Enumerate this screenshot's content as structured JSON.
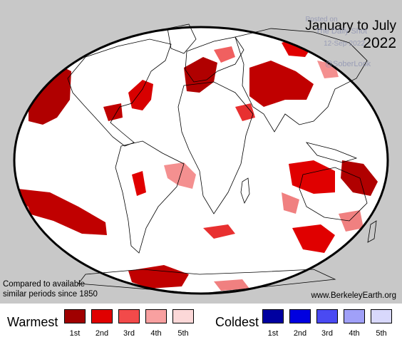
{
  "map": {
    "title_line1": "January to July",
    "title_line2": "2022",
    "watermark": [
      "Posted on",
      "The Daily Shot",
      "12-Sep-2022",
      "@SoberLook"
    ],
    "footnote": "Compared to available similar periods since 1850",
    "credit": "www.BerkeleyEarth.org",
    "ocean_color": "#ffffff",
    "background_color": "#c8c8c8",
    "border_color": "#000000"
  },
  "legend": {
    "warm_label": "Warmest",
    "cold_label": "Coldest",
    "warm_items": [
      {
        "label": "1st",
        "color": "#a00000"
      },
      {
        "label": "2nd",
        "color": "#e00000"
      },
      {
        "label": "3rd",
        "color": "#f24a4a"
      },
      {
        "label": "4th",
        "color": "#f8a0a0"
      },
      {
        "label": "5th",
        "color": "#fcd8d8"
      }
    ],
    "cold_items": [
      {
        "label": "1st",
        "color": "#0000a0"
      },
      {
        "label": "2nd",
        "color": "#0000e0"
      },
      {
        "label": "3rd",
        "color": "#4a4af2"
      },
      {
        "label": "4th",
        "color": "#a0a0f8"
      },
      {
        "label": "5th",
        "color": "#d8d8fc"
      }
    ]
  }
}
